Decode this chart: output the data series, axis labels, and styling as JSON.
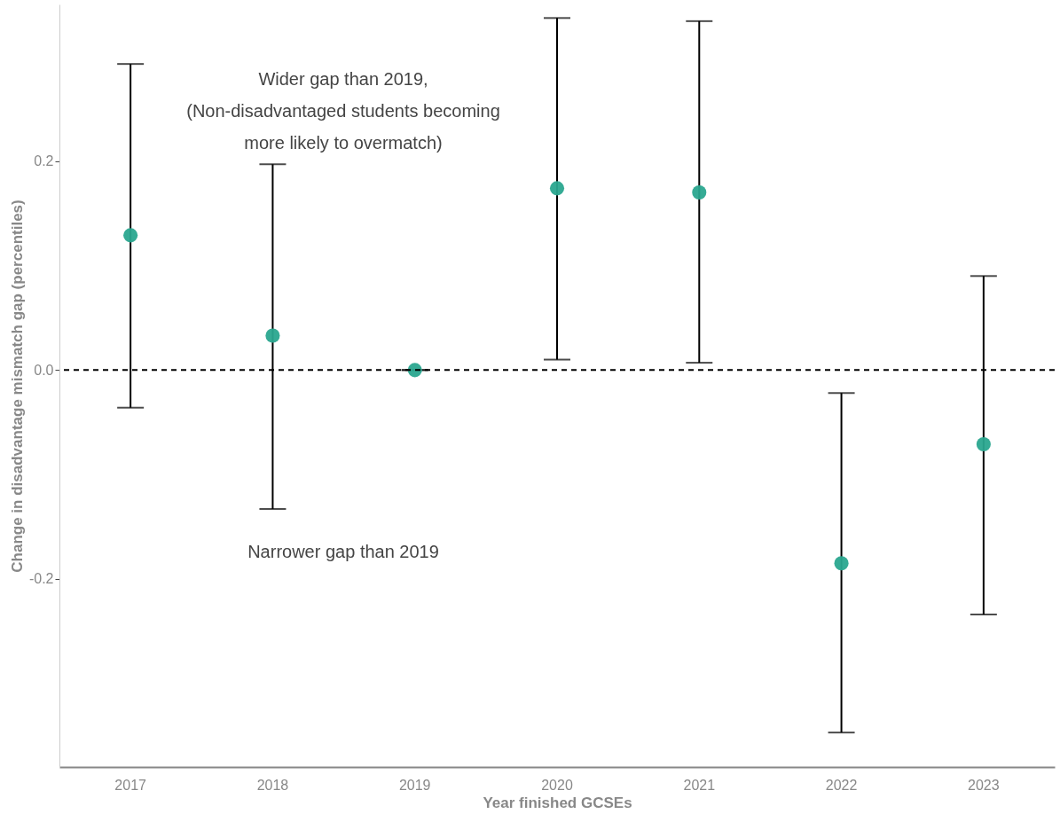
{
  "chart_data": {
    "type": "scatter",
    "xlabel": "Year finished GCSEs",
    "ylabel": "Change in disadvantage mismatch gap (percentiles)",
    "categories": [
      "2017",
      "2018",
      "2019",
      "2020",
      "2021",
      "2022",
      "2023"
    ],
    "series": [
      {
        "color": "#2aa68f",
        "values": [
          0.129,
          0.033,
          0.0,
          0.174,
          0.17,
          -0.185,
          -0.071
        ],
        "errors": [
          [
            -0.036,
            0.293
          ],
          [
            -0.133,
            0.197
          ],
          [
            0.0,
            0.0
          ],
          [
            0.01,
            0.337
          ],
          [
            0.007,
            0.334
          ],
          [
            -0.347,
            -0.022
          ],
          [
            -0.234,
            0.09
          ]
        ]
      }
    ],
    "ylim": [
      -0.38,
      0.35
    ],
    "yticks": [
      -0.2,
      {
        "value": 0,
        "label": "0.0"
      },
      0.2
    ],
    "ref_lines": [
      {
        "axis": "y",
        "value": 0,
        "line_style": "dashed",
        "color": "#000000"
      }
    ],
    "annotations": [
      "Wider gap than 2019,\n(Non-disadvantaged students becoming\nmore likely to overmatch)",
      "Narrower gap than 2019"
    ],
    "marker": "circle",
    "grid": false
  }
}
